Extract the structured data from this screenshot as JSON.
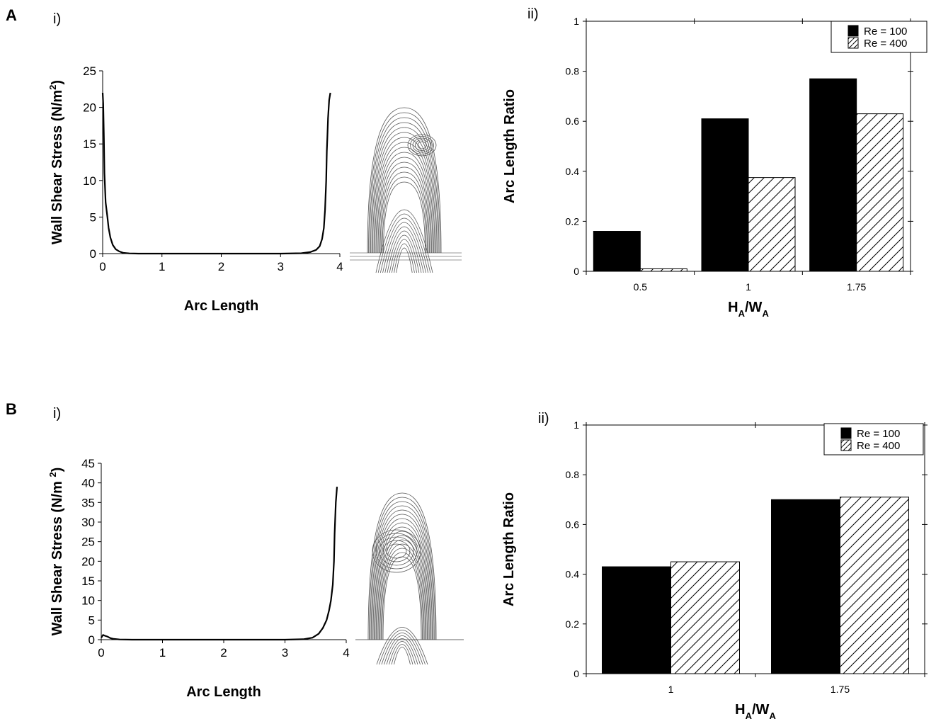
{
  "panels": {
    "A": {
      "letter": "A",
      "i_label": "i)",
      "ii_label": "ii)"
    },
    "B": {
      "letter": "B",
      "i_label": "i)",
      "ii_label": "ii)"
    }
  },
  "chart_data": [
    {
      "id": "A-i",
      "type": "line",
      "xlabel": "Arc Length",
      "ylabel": "Wall Shear Stress (N/m²)",
      "ylabel_main": "Wall Shear Stress (N/m",
      "ylabel_sup": "2",
      "ylabel_end": ")",
      "xlim": [
        0,
        4
      ],
      "ylim": [
        0,
        25
      ],
      "xticks": [
        "0",
        "1",
        "2",
        "3",
        "4"
      ],
      "yticks": [
        "0",
        "5",
        "10",
        "15",
        "20",
        "25"
      ],
      "series": [
        {
          "x": [
            0.0,
            0.01,
            0.02,
            0.03,
            0.05,
            0.08,
            0.1,
            0.13,
            0.17,
            0.22,
            0.28,
            0.35,
            0.45,
            0.6,
            1.0,
            2.0,
            3.0,
            3.35,
            3.5,
            3.6,
            3.66,
            3.7,
            3.73,
            3.75,
            3.77,
            3.78,
            3.79,
            3.8,
            3.82,
            3.84
          ],
          "y": [
            22.0,
            20.5,
            16.0,
            11.0,
            7.0,
            5.0,
            3.5,
            2.2,
            1.2,
            0.6,
            0.3,
            0.1,
            0.03,
            0.0,
            0.0,
            0.0,
            0.0,
            0.05,
            0.2,
            0.5,
            1.0,
            2.0,
            3.5,
            6.0,
            10.0,
            14.0,
            16.0,
            18.5,
            21.0,
            22.0
          ]
        }
      ]
    },
    {
      "id": "A-ii",
      "type": "bar",
      "xlabel_main": "H",
      "xlabel_sub1": "A",
      "xlabel_mid": "/W",
      "xlabel_sub2": "A",
      "ylabel": "Arc Length Ratio",
      "categories": [
        "0.5",
        "1",
        "1.75"
      ],
      "ylim": [
        0,
        1
      ],
      "yticks": [
        "0",
        "0.2",
        "0.4",
        "0.6",
        "0.8",
        "1"
      ],
      "legend_position": "top-right",
      "series": [
        {
          "name": "Re = 100",
          "values": [
            0.16,
            0.61,
            0.77
          ],
          "fill": "#000000"
        },
        {
          "name": "Re = 400",
          "values": [
            0.01,
            0.375,
            0.63
          ],
          "fill": "hatch"
        }
      ]
    },
    {
      "id": "B-i",
      "type": "line",
      "xlabel": "Arc Length",
      "ylabel": "Wall Shear Stress (N/m 2)",
      "ylabel_main": "Wall Shear Stress (N/m ",
      "ylabel_sup": "2",
      "ylabel_end": ")",
      "xlim": [
        0,
        4
      ],
      "ylim": [
        0,
        45
      ],
      "xticks": [
        "0",
        "1",
        "2",
        "3",
        "4"
      ],
      "yticks": [
        "0",
        "5",
        "10",
        "15",
        "20",
        "25",
        "30",
        "35",
        "40",
        "45"
      ],
      "series": [
        {
          "x": [
            0.0,
            0.03,
            0.06,
            0.1,
            0.15,
            0.2,
            0.3,
            0.5,
            1.0,
            2.0,
            3.0,
            3.3,
            3.45,
            3.55,
            3.62,
            3.68,
            3.72,
            3.75,
            3.78,
            3.8,
            3.81,
            3.83,
            3.85
          ],
          "y": [
            0.5,
            1.2,
            1.0,
            0.8,
            0.4,
            0.2,
            0.05,
            0.0,
            0.0,
            0.0,
            0.0,
            0.1,
            0.5,
            1.5,
            3.0,
            5.0,
            7.5,
            10.0,
            14.0,
            20.0,
            27.0,
            35.0,
            39.0
          ]
        }
      ]
    },
    {
      "id": "B-ii",
      "type": "bar",
      "xlabel_main": "H",
      "xlabel_sub1": "A",
      "xlabel_mid": "/W",
      "xlabel_sub2": "A",
      "ylabel": "Arc Length Ratio",
      "categories": [
        "1",
        "1.75"
      ],
      "ylim": [
        0,
        1
      ],
      "yticks": [
        "0",
        "0.2",
        "0.4",
        "0.6",
        "0.8",
        "1"
      ],
      "legend_position": "top-right",
      "series": [
        {
          "name": "Re = 100",
          "values": [
            0.43,
            0.7
          ],
          "fill": "#000000"
        },
        {
          "name": "Re = 400",
          "values": [
            0.45,
            0.71
          ],
          "fill": "hatch"
        }
      ]
    }
  ]
}
